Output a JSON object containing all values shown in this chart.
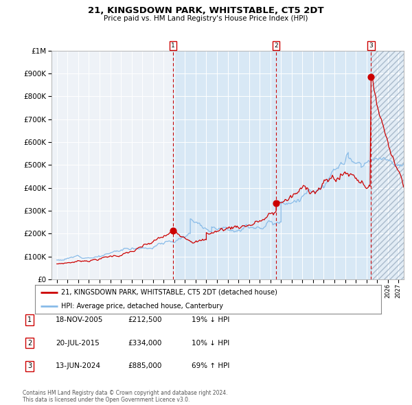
{
  "title": "21, KINGSDOWN PARK, WHITSTABLE, CT5 2DT",
  "subtitle": "Price paid vs. HM Land Registry's House Price Index (HPI)",
  "legend_label_red": "21, KINGSDOWN PARK, WHITSTABLE, CT5 2DT (detached house)",
  "legend_label_blue": "HPI: Average price, detached house, Canterbury",
  "transactions": [
    {
      "num": 1,
      "date": "18-NOV-2005",
      "price": 212500,
      "pct": "19%",
      "dir": "↓"
    },
    {
      "num": 2,
      "date": "20-JUL-2015",
      "price": 334000,
      "pct": "10%",
      "dir": "↓"
    },
    {
      "num": 3,
      "date": "13-JUN-2024",
      "price": 885000,
      "pct": "69%",
      "dir": "↑"
    }
  ],
  "transaction_dates_decimal": [
    2005.88,
    2015.54,
    2024.44
  ],
  "transaction_prices": [
    212500,
    334000,
    885000
  ],
  "copyright": "Contains HM Land Registry data © Crown copyright and database right 2024.\nThis data is licensed under the Open Government Licence v3.0.",
  "ylim": [
    0,
    1000000
  ],
  "xlim_start": 1994.5,
  "xlim_end": 2027.5,
  "ownership_start": 2005.88,
  "ownership_end": 2024.44,
  "background_color": "#ffffff",
  "plot_bg_color": "#eef2f7",
  "ownership_bg_color": "#d8e8f5",
  "red_line_color": "#cc0000",
  "blue_line_color": "#88bbe8",
  "grid_color": "#ffffff",
  "marker_color": "#cc0000",
  "dashed_line_color": "#cc0000",
  "label_box_color": "#cc0000",
  "yticks": [
    0,
    100000,
    200000,
    300000,
    400000,
    500000,
    600000,
    700000,
    800000,
    900000,
    1000000
  ],
  "ytick_labels": [
    "£0",
    "£100K",
    "£200K",
    "£300K",
    "£400K",
    "£500K",
    "£600K",
    "£700K",
    "£800K",
    "£900K",
    "£1M"
  ]
}
